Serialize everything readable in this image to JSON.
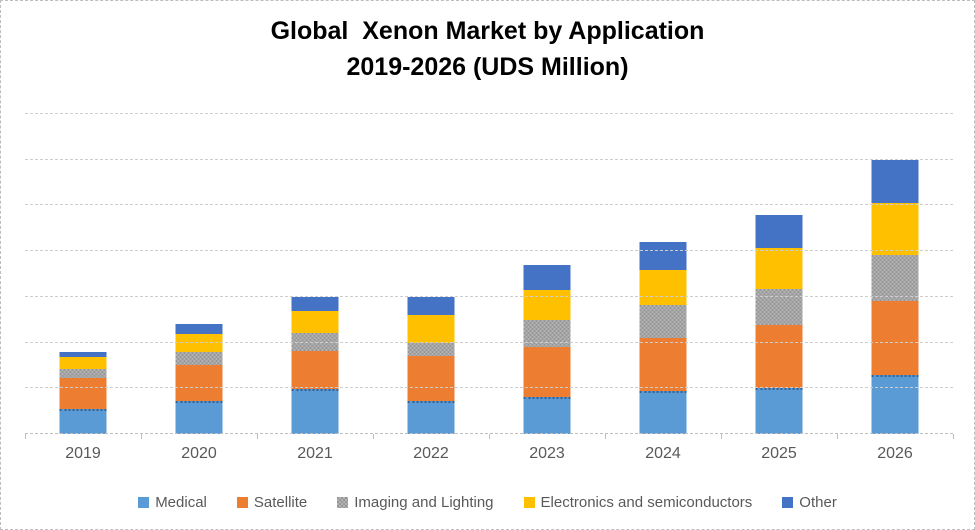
{
  "chart_data": {
    "type": "bar",
    "stacked": true,
    "title": "Global  Xenon Market by Application\n2019-2026 (UDS Million)",
    "xlabel": "",
    "ylabel": "",
    "categories": [
      "2019",
      "2020",
      "2021",
      "2022",
      "2023",
      "2024",
      "2025",
      "2026"
    ],
    "series": [
      {
        "name": "Medical",
        "color": "#5B9BD5",
        "dotted_edge": true,
        "pattern": "solid",
        "values": [
          27,
          36,
          49,
          36,
          41,
          47,
          50,
          65
        ]
      },
      {
        "name": "Satellite",
        "color": "#ED7D31",
        "dotted_edge": false,
        "pattern": "solid",
        "values": [
          34,
          39,
          42,
          49,
          54,
          58,
          69,
          80
        ]
      },
      {
        "name": "Imaging and Lighting",
        "color": "#A5A5A5",
        "dotted_edge": false,
        "pattern": "checker",
        "values": [
          10,
          15,
          19,
          15,
          30,
          36,
          40,
          51
        ]
      },
      {
        "name": "Electronics and semiconductors",
        "color": "#FFC000",
        "dotted_edge": false,
        "pattern": "solid",
        "values": [
          13,
          19,
          25,
          30,
          33,
          38,
          45,
          57
        ]
      },
      {
        "name": "Other",
        "color": "#4472C4",
        "dotted_edge": false,
        "pattern": "solid",
        "values": [
          6,
          11,
          15,
          20,
          27,
          31,
          36,
          47
        ]
      }
    ],
    "totals": [
      90,
      120,
      150,
      150,
      185,
      210,
      240,
      300
    ],
    "ylim": [
      0,
      350
    ],
    "gridline_step": 50,
    "grid": true,
    "y_axis_labels_visible": false,
    "legend_position": "bottom"
  },
  "styles": {
    "background": "#ffffff",
    "frame_border_color": "#bdbdbd",
    "gridline_color": "#cdcdcd",
    "axis_line_color": "#bfbfbf",
    "axis_text_color": "#595959",
    "title_color": "#000000"
  }
}
